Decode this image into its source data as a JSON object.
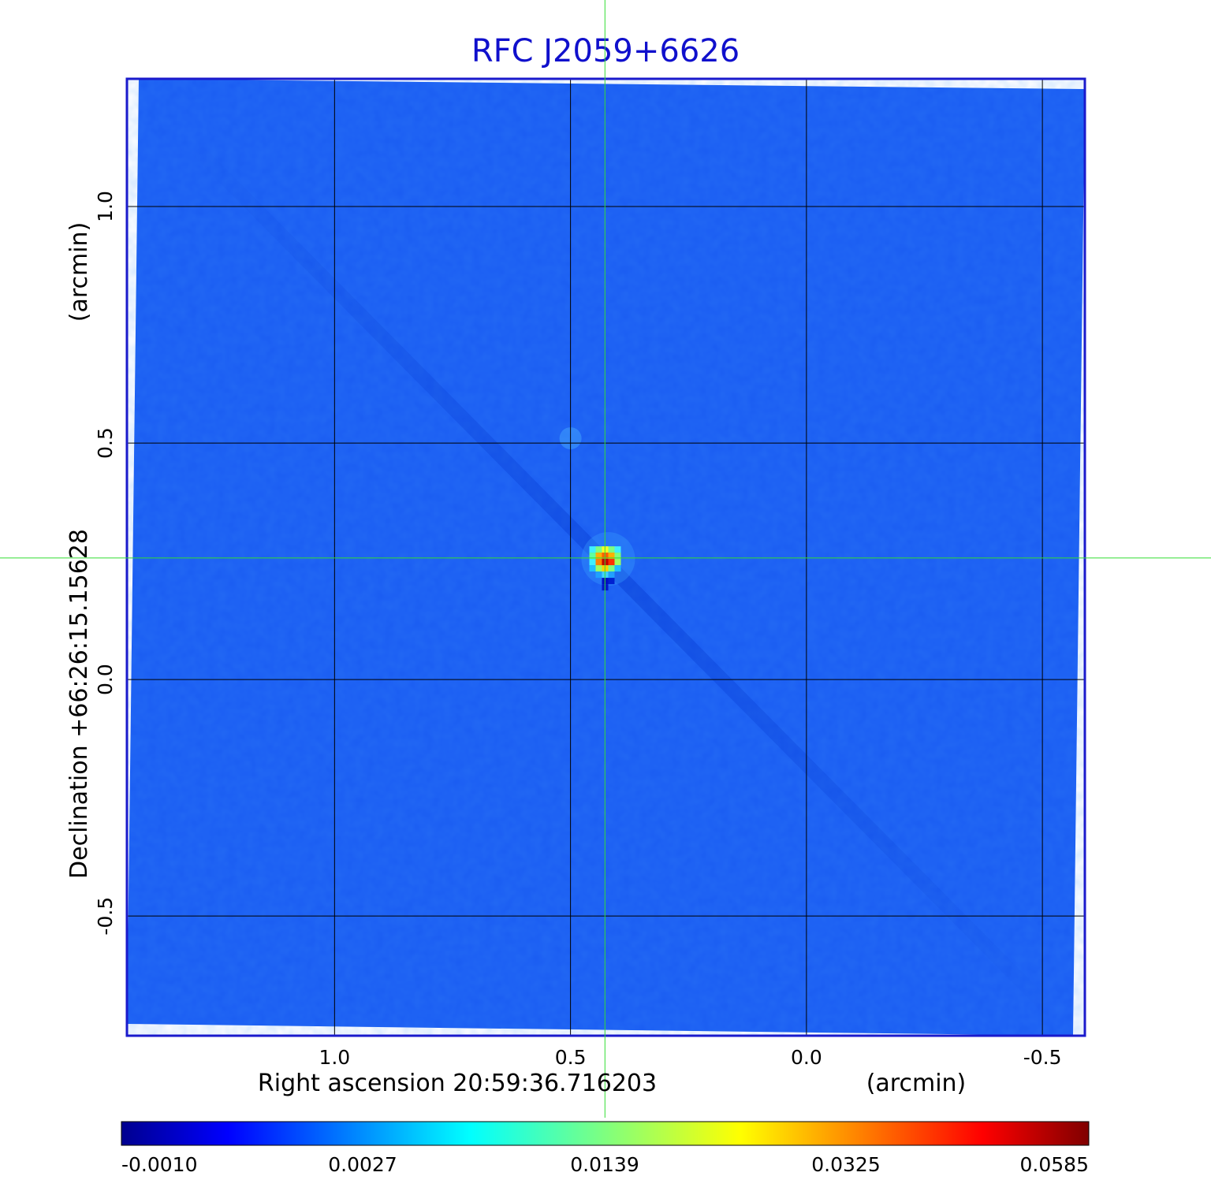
{
  "chart_data": {
    "type": "heatmap",
    "title": "RFC J2059+6626",
    "xlabel": "Right ascension  20:59:36.716203",
    "xunit": "(arcmin)",
    "ylabel": "Declination  +66:26:15.15628",
    "yunit": "(arcmin)",
    "x_ticks": [
      "1.0",
      "0.5",
      "0.0",
      "-0.5"
    ],
    "x_tick_values": [
      1.0,
      0.5,
      0.0,
      -0.5
    ],
    "y_ticks": [
      "1.0",
      "0.5",
      "0.0",
      "-0.5"
    ],
    "y_tick_values": [
      1.0,
      0.5,
      0.0,
      -0.5
    ],
    "xlim": [
      1.44,
      -0.59
    ],
    "ylim": [
      -0.753,
      1.27
    ],
    "grid": true,
    "crosshair": {
      "x": 0.427,
      "y": 0.257,
      "color": "#33dd33"
    },
    "source_peak": {
      "x": 0.42,
      "y": 0.255,
      "peak_value": 0.0585
    },
    "colormap": "jet",
    "colorbar": {
      "tick_labels": [
        "-0.0010",
        "0.0027",
        "0.0139",
        "0.0325",
        "0.0585"
      ],
      "values": [
        -0.001,
        0.0027,
        0.0139,
        0.0325,
        0.0585
      ]
    },
    "frame_color": "#1a1acc",
    "background_color": "#1a5cf2"
  }
}
